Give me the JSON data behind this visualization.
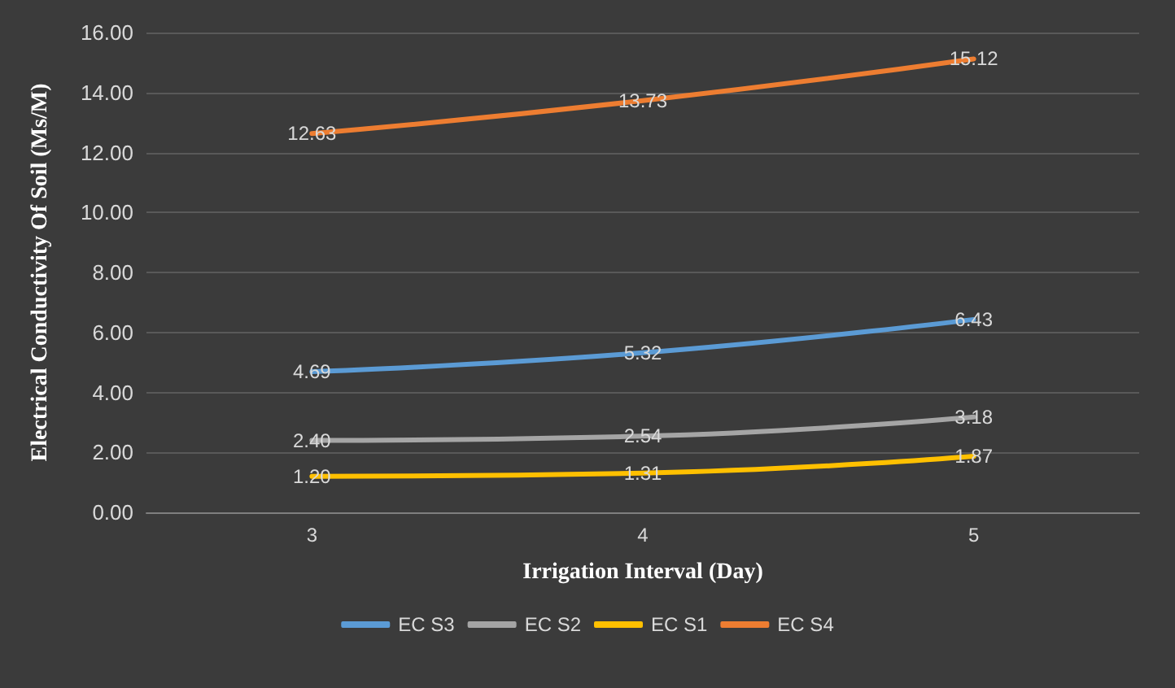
{
  "chart_data": {
    "type": "line",
    "xlabel": "Irrigation Interval (Day)",
    "ylabel": "Electrical Conductivity Of Soil (Ms/M)",
    "categories": [
      "3",
      "4",
      "5"
    ],
    "series": [
      {
        "name": "EC S3",
        "color": "#5b9bd5",
        "values": [
          4.69,
          5.32,
          6.43
        ],
        "value_labels": [
          "4.69",
          "5.32",
          "6.43"
        ]
      },
      {
        "name": "EC S2",
        "color": "#a5a5a5",
        "values": [
          2.4,
          2.54,
          3.18
        ],
        "value_labels": [
          "2.40",
          "2.54",
          "3.18"
        ]
      },
      {
        "name": "EC S1",
        "color": "#ffc000",
        "values": [
          1.2,
          1.31,
          1.87
        ],
        "value_labels": [
          "1.20",
          "1.31",
          "1.87"
        ]
      },
      {
        "name": "EC S4",
        "color": "#ed7d31",
        "values": [
          12.63,
          13.73,
          15.12
        ],
        "value_labels": [
          "12.63",
          "13.73",
          "15.12"
        ]
      }
    ],
    "ylim": [
      0,
      16
    ],
    "yticks": [
      {
        "value": 0,
        "label": "0.00"
      },
      {
        "value": 2,
        "label": "2.00"
      },
      {
        "value": 4,
        "label": "4.00"
      },
      {
        "value": 6,
        "label": "6.00"
      },
      {
        "value": 8,
        "label": "8.00"
      },
      {
        "value": 10,
        "label": "10.00"
      },
      {
        "value": 12,
        "label": "12.00"
      },
      {
        "value": 14,
        "label": "14.00"
      },
      {
        "value": 16,
        "label": "16.00"
      }
    ],
    "grid": "y",
    "legend": "bottom",
    "marker": "none",
    "line_style": "solid"
  }
}
